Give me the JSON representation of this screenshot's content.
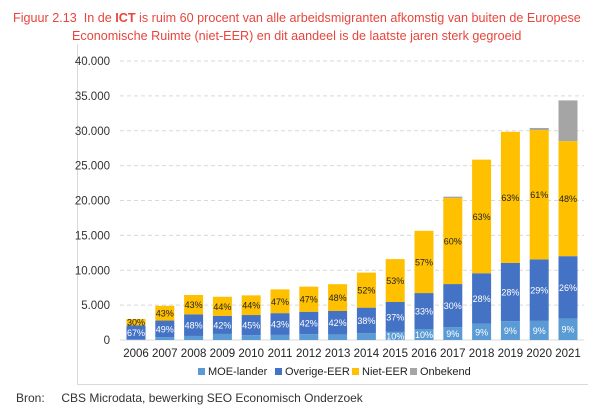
{
  "title": {
    "figure_number": "Figuur 2.13",
    "text_before": "In de",
    "bold": "ICT",
    "text_after": "is ruim 60 procent van alle arbeidsmigranten afkomstig van buiten de Europese",
    "line2": "Economische Ruimte (niet-EER) en dit aandeel is de laatste jaren sterk gegroeid"
  },
  "source": {
    "label": "Bron:",
    "text": "CBS Microdata, bewerking SEO Economisch Onderzoek"
  },
  "chart_data": {
    "type": "bar",
    "stacked": true,
    "title": "",
    "xlabel": "",
    "ylabel": "",
    "ylim": [
      0,
      40000
    ],
    "yticks": [
      "0",
      "5.000",
      "10.000",
      "15.000",
      "20.000",
      "25.000",
      "30.000",
      "35.000",
      "40.000"
    ],
    "ytick_values": [
      0,
      5000,
      10000,
      15000,
      20000,
      25000,
      30000,
      35000,
      40000
    ],
    "grid": "horizontal dashed",
    "legend": "bottom",
    "categories": [
      "2006",
      "2007",
      "2008",
      "2009",
      "2010",
      "2011",
      "2012",
      "2013",
      "2014",
      "2015",
      "2016",
      "2017",
      "2018",
      "2019",
      "2020",
      "2021"
    ],
    "series": [
      {
        "name": "MOE-lander",
        "color": "#5b9bd5",
        "values": [
          90,
          390,
          580,
          870,
          700,
          730,
          840,
          800,
          970,
          1160,
          1570,
          1850,
          2330,
          2690,
          2740,
          3090
        ],
        "labels": [
          null,
          null,
          null,
          null,
          null,
          null,
          null,
          null,
          null,
          "10%",
          "10%",
          "9%",
          "9%",
          "9%",
          "9%",
          "9%"
        ]
      },
      {
        "name": "Overige-EER",
        "color": "#4472c4",
        "values": [
          2010,
          2400,
          3100,
          2600,
          2880,
          3120,
          3210,
          3360,
          3670,
          4290,
          5160,
          6170,
          7240,
          8360,
          8820,
          8930
        ],
        "labels": [
          "67%",
          "49%",
          "48%",
          "42%",
          "45%",
          "43%",
          "42%",
          "42%",
          "38%",
          "37%",
          "33%",
          "30%",
          "28%",
          "28%",
          "29%",
          "26%"
        ]
      },
      {
        "name": "Niet-EER",
        "color": "#ffc000",
        "values": [
          900,
          2110,
          2770,
          2730,
          2820,
          3410,
          3600,
          3840,
          5020,
          6150,
          8920,
          12330,
          16290,
          18800,
          18540,
          16490
        ],
        "labels": [
          "30%",
          "43%",
          "43%",
          "44%",
          "44%",
          "47%",
          "47%",
          "48%",
          "52%",
          "53%",
          "57%",
          "60%",
          "63%",
          "63%",
          "61%",
          "48%"
        ]
      },
      {
        "name": "Onbekend",
        "color": "#a5a5a5",
        "values": [
          0,
          0,
          0,
          0,
          0,
          0,
          0,
          0,
          0,
          0,
          0,
          200,
          0,
          0,
          300,
          5840
        ],
        "labels": [
          null,
          null,
          null,
          null,
          null,
          null,
          null,
          null,
          null,
          null,
          null,
          null,
          null,
          null,
          null,
          null
        ]
      }
    ]
  }
}
